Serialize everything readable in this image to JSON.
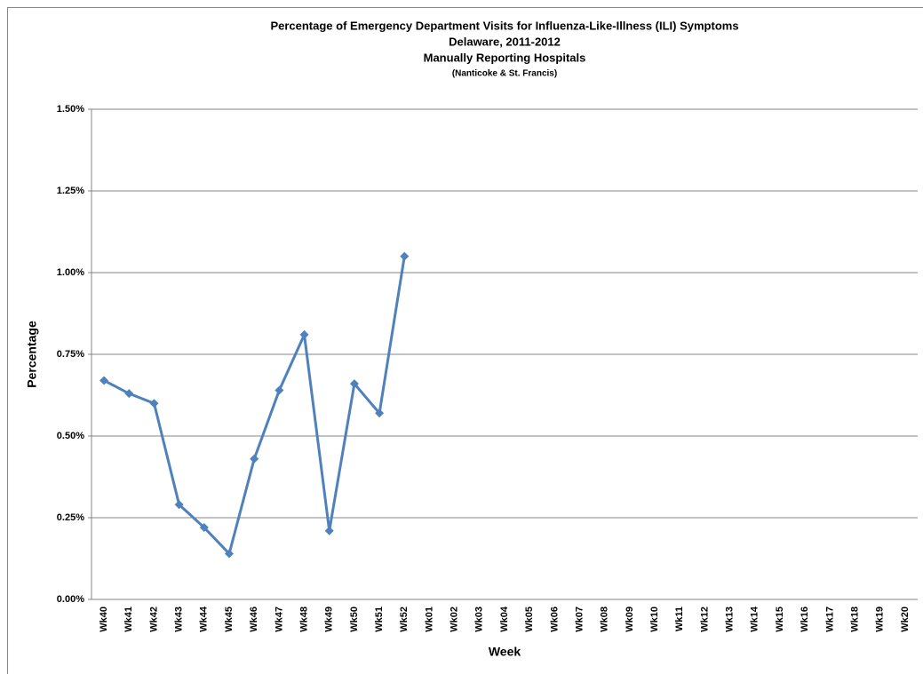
{
  "chart_data": {
    "type": "line",
    "title": [
      "Percentage of Emergency Department Visits for Influenza-Like-Illness (ILI) Symptoms",
      "Delaware, 2011-2012",
      "Manually Reporting  Hospitals",
      "(Nanticoke & St. Francis)"
    ],
    "xlabel": "Week",
    "ylabel": "Percentage",
    "categories": [
      "Wk40",
      "Wk41",
      "Wk42",
      "Wk43",
      "Wk44",
      "Wk45",
      "Wk46",
      "Wk47",
      "Wk48",
      "Wk49",
      "Wk50",
      "Wk51",
      "Wk52",
      "Wk01",
      "Wk02",
      "Wk03",
      "Wk04",
      "Wk05",
      "Wk06",
      "Wk07",
      "Wk08",
      "Wk09",
      "Wk10",
      "Wk11",
      "Wk12",
      "Wk13",
      "Wk14",
      "Wk15",
      "Wk16",
      "Wk17",
      "Wk18",
      "Wk19",
      "Wk20"
    ],
    "series": [
      {
        "color": "#4f81bd",
        "values": [
          0.67,
          0.63,
          0.6,
          0.29,
          0.22,
          0.14,
          0.43,
          0.64,
          0.81,
          0.21,
          0.66,
          0.57,
          1.05,
          null,
          null,
          null,
          null,
          null,
          null,
          null,
          null,
          null,
          null,
          null,
          null,
          null,
          null,
          null,
          null,
          null,
          null,
          null,
          null
        ]
      }
    ],
    "ylim": [
      0,
      1.5
    ],
    "yticks": [
      {
        "value": 0,
        "label": "0.00%"
      },
      {
        "value": 0.25,
        "label": "0.25%"
      },
      {
        "value": 0.5,
        "label": "0.50%"
      },
      {
        "value": 0.75,
        "label": "0.75%"
      },
      {
        "value": 1.0,
        "label": "1.00%"
      },
      {
        "value": 1.25,
        "label": "1.25%"
      },
      {
        "value": 1.5,
        "label": "1.50%"
      }
    ],
    "grid": true
  }
}
